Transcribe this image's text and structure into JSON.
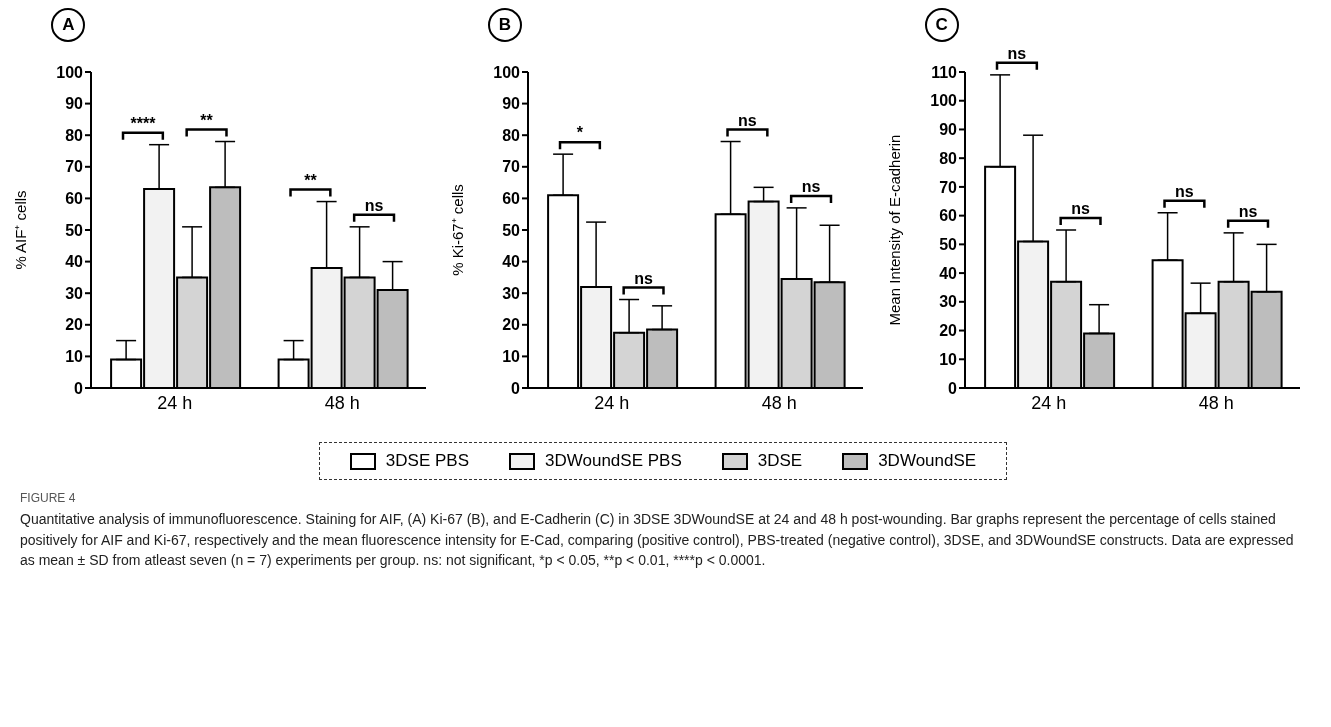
{
  "chart_data": [
    {
      "type": "bar",
      "title": "A",
      "ylabel": "% AIF⁺ cells",
      "categories": [
        "24 h",
        "48 h"
      ],
      "ylim": [
        0,
        100
      ],
      "yticks": [
        0,
        10,
        20,
        30,
        40,
        50,
        60,
        70,
        80,
        90,
        100
      ],
      "grid": false,
      "legend": "bottom",
      "series": [
        {
          "name": "3DSE PBS",
          "color": "#ffffff",
          "values": [
            9,
            9
          ],
          "errors": [
            [
              9,
              15
            ],
            [
              9,
              15
            ]
          ]
        },
        {
          "name": "3DWoundSE PBS",
          "color": "#f2f2f2",
          "values": [
            63,
            38
          ],
          "errors": [
            [
              63,
              77
            ],
            [
              38,
              59
            ]
          ]
        },
        {
          "name": "3DSE",
          "color": "#d4d4d4",
          "values": [
            35,
            35
          ],
          "errors": [
            [
              35,
              51
            ],
            [
              35,
              51
            ]
          ]
        },
        {
          "name": "3DWoundSE",
          "color": "#bdbdbd",
          "values": [
            63.5,
            31
          ],
          "errors": [
            [
              63.5,
              78
            ],
            [
              31,
              40
            ]
          ]
        }
      ],
      "annotations": [
        "****",
        "**",
        "**",
        "ns",
        "FIGURE 4",
        "Quantitative analysis of immunofluorescence. Staining for AIF, (A) Ki-67 (B), and E-Cadherin (C) in 3DSE 3DWoundSE at 24 and 48 h post-wounding. Bar graphs represent the percentage of cells stained positively for AIF and Ki-67, respectively and the mean fluorescence intensity for E-Cad, comparing (positive control), PBS-treated (negative control), 3DSE, and 3DWoundSE constructs. Data are expressed as mean ± SD from atleast seven (n = 7) experiments per group. ns: not significant, *p < 0.05, **p < 0.01, ****p < 0.0001."
      ]
    },
    {
      "type": "bar",
      "title": "B",
      "ylabel": "% Ki-67⁺ cells",
      "categories": [
        "24 h",
        "48 h"
      ],
      "ylim": [
        0,
        100
      ],
      "yticks": [
        0,
        10,
        20,
        30,
        40,
        50,
        60,
        70,
        80,
        90,
        100
      ],
      "grid": false,
      "series": [
        {
          "color": "#ffffff",
          "values": [
            61,
            55
          ],
          "errors": [
            [
              61,
              74
            ],
            [
              55,
              78
            ]
          ]
        },
        {
          "color": "#f2f2f2",
          "values": [
            32,
            59
          ],
          "errors": [
            [
              32,
              52.5
            ],
            [
              59,
              63.5
            ]
          ]
        },
        {
          "color": "#d4d4d4",
          "values": [
            17.5,
            34.5
          ],
          "errors": [
            [
              17.5,
              28
            ],
            [
              34.5,
              57
            ]
          ]
        },
        {
          "color": "#bdbdbd",
          "values": [
            18.5,
            33.5
          ],
          "errors": [
            [
              18.5,
              26
            ],
            [
              33.5,
              51.5
            ]
          ]
        }
      ],
      "annotations": [
        "*",
        "ns",
        "ns",
        "ns"
      ]
    },
    {
      "type": "bar",
      "title": "C",
      "ylabel": "Mean Intensity of E-cadherin",
      "categories": [
        "24 h",
        "48 h"
      ],
      "ylim": [
        0,
        110
      ],
      "yticks": [
        0,
        10,
        20,
        30,
        40,
        50,
        60,
        70,
        80,
        90,
        100,
        110
      ],
      "grid": false,
      "series": [
        {
          "color": "#ffffff",
          "values": [
            77,
            44.5
          ],
          "errors": [
            [
              77,
              109
            ],
            [
              44.5,
              61
            ]
          ]
        },
        {
          "color": "#f2f2f2",
          "values": [
            51,
            26
          ],
          "errors": [
            [
              51,
              88
            ],
            [
              26,
              36.5
            ]
          ]
        },
        {
          "color": "#d4d4d4",
          "values": [
            37,
            37
          ],
          "errors": [
            [
              37,
              55
            ],
            [
              37,
              54
            ]
          ]
        },
        {
          "color": "#bdbdbd",
          "values": [
            19,
            33.5
          ],
          "errors": [
            [
              19,
              29
            ],
            [
              33.5,
              50
            ]
          ]
        }
      ],
      "annotations": [
        "ns",
        "ns",
        "ns",
        "ns"
      ]
    }
  ]
}
